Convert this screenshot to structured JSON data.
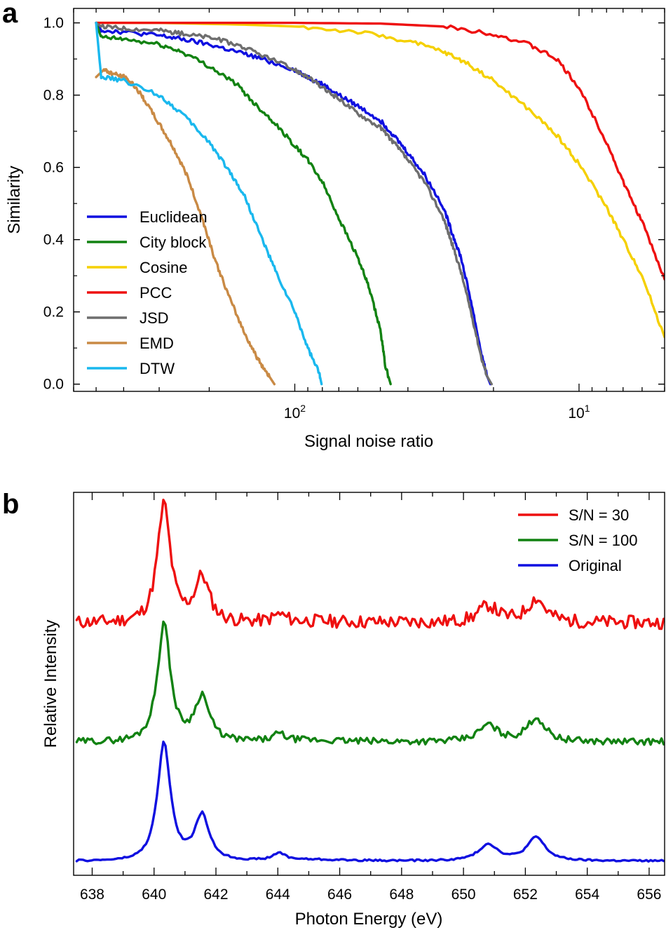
{
  "figure": {
    "panel_a_label": "a",
    "panel_b_label": "b"
  },
  "chart_data": [
    {
      "type": "line",
      "panel": "a",
      "title": "",
      "xlabel": "Signal noise ratio",
      "ylabel": "Similarity",
      "xscale": "log",
      "x_reversed": true,
      "xlim": [
        600,
        5
      ],
      "ylim": [
        -0.02,
        1.04
      ],
      "xticks": [
        {
          "value": 100,
          "base": "10",
          "exp": "2"
        },
        {
          "value": 10,
          "base": "10",
          "exp": "1"
        }
      ],
      "yticks": [
        {
          "value": 0.0,
          "label": "0.0"
        },
        {
          "value": 0.2,
          "label": "0.2"
        },
        {
          "value": 0.4,
          "label": "0.4"
        },
        {
          "value": 0.6,
          "label": "0.6"
        },
        {
          "value": 0.8,
          "label": "0.8"
        },
        {
          "value": 1.0,
          "label": "1.0"
        }
      ],
      "legend_position": "bottom-left",
      "series": [
        {
          "name": "Euclidean",
          "color": "#1010e0",
          "x": [
            500,
            480,
            400,
            300,
            250,
            200,
            160,
            130,
            100,
            90,
            80,
            70,
            60,
            50,
            45,
            40,
            35,
            30,
            28,
            26,
            24,
            22,
            21,
            20.5
          ],
          "y": [
            1.0,
            0.98,
            0.975,
            0.965,
            0.955,
            0.94,
            0.92,
            0.9,
            0.87,
            0.85,
            0.83,
            0.8,
            0.77,
            0.73,
            0.69,
            0.64,
            0.58,
            0.49,
            0.42,
            0.35,
            0.23,
            0.08,
            0.02,
            0.0
          ]
        },
        {
          "name": "City block",
          "color": "#128212",
          "x": [
            500,
            480,
            400,
            300,
            250,
            200,
            160,
            140,
            120,
            100,
            90,
            80,
            70,
            60,
            55,
            50,
            48,
            46
          ],
          "y": [
            1.0,
            0.96,
            0.955,
            0.94,
            0.92,
            0.88,
            0.83,
            0.78,
            0.73,
            0.66,
            0.62,
            0.56,
            0.46,
            0.35,
            0.27,
            0.15,
            0.05,
            0.0
          ]
        },
        {
          "name": "Cosine",
          "color": "#f5d000",
          "x": [
            500,
            300,
            150,
            100,
            60,
            40,
            30,
            25,
            20,
            15,
            12,
            10,
            8,
            7,
            6,
            5
          ],
          "y": [
            1.0,
            1.0,
            0.995,
            0.99,
            0.975,
            0.95,
            0.92,
            0.89,
            0.84,
            0.76,
            0.69,
            0.61,
            0.49,
            0.4,
            0.3,
            0.13
          ]
        },
        {
          "name": "PCC",
          "color": "#ee1010",
          "x": [
            500,
            300,
            100,
            50,
            30,
            20,
            15,
            12,
            10,
            8,
            7,
            6,
            5
          ],
          "y": [
            1.0,
            1.0,
            1.0,
            0.998,
            0.99,
            0.97,
            0.94,
            0.9,
            0.82,
            0.67,
            0.56,
            0.45,
            0.29
          ]
        },
        {
          "name": "JSD",
          "color": "#6e6e6e",
          "x": [
            500,
            480,
            400,
            300,
            250,
            200,
            160,
            130,
            100,
            90,
            80,
            70,
            60,
            50,
            45,
            40,
            35,
            30,
            28,
            26,
            24,
            22,
            21,
            20.3
          ],
          "y": [
            1.0,
            0.99,
            0.985,
            0.98,
            0.97,
            0.96,
            0.94,
            0.91,
            0.87,
            0.85,
            0.82,
            0.79,
            0.75,
            0.71,
            0.67,
            0.62,
            0.56,
            0.46,
            0.39,
            0.31,
            0.2,
            0.07,
            0.02,
            0.0
          ]
        },
        {
          "name": "EMD",
          "color": "#c98a45",
          "x": [
            500,
            470,
            440,
            400,
            370,
            340,
            300,
            270,
            240,
            210,
            190,
            170,
            150,
            135,
            125,
            118
          ],
          "y": [
            0.85,
            0.87,
            0.86,
            0.85,
            0.83,
            0.79,
            0.72,
            0.66,
            0.58,
            0.45,
            0.34,
            0.24,
            0.14,
            0.07,
            0.03,
            0.0
          ]
        },
        {
          "name": "DTW",
          "color": "#1ab8ee",
          "x": [
            500,
            480,
            400,
            300,
            250,
            200,
            170,
            150,
            130,
            115,
            100,
            90,
            82,
            80.5
          ],
          "y": [
            1.0,
            0.85,
            0.84,
            0.8,
            0.75,
            0.67,
            0.59,
            0.52,
            0.4,
            0.3,
            0.2,
            0.1,
            0.03,
            0.0
          ]
        }
      ]
    },
    {
      "type": "line",
      "panel": "b",
      "title": "",
      "xlabel": "Photon Energy (eV)",
      "ylabel": "Relative Intensity",
      "xlim": [
        637.4,
        656.5
      ],
      "ylim": [
        -0.2,
        5.1
      ],
      "grid": false,
      "xticks": [
        {
          "value": 638,
          "label": "638"
        },
        {
          "value": 640,
          "label": "640"
        },
        {
          "value": 642,
          "label": "642"
        },
        {
          "value": 644,
          "label": "644"
        },
        {
          "value": 646,
          "label": "646"
        },
        {
          "value": 648,
          "label": "648"
        },
        {
          "value": 650,
          "label": "650"
        },
        {
          "value": 652,
          "label": "652"
        },
        {
          "value": 654,
          "label": "654"
        },
        {
          "value": 656,
          "label": "656"
        }
      ],
      "legend_position": "top-right",
      "peaks": [
        [
          640.32,
          0.3,
          1.65
        ],
        [
          641.55,
          0.34,
          0.63
        ],
        [
          644.05,
          0.28,
          0.1
        ],
        [
          645.0,
          1.6,
          0.02
        ],
        [
          650.8,
          0.45,
          0.23
        ],
        [
          652.35,
          0.42,
          0.33
        ]
      ],
      "series": [
        {
          "name": "S/N = 30",
          "color": "#ee1010",
          "offset": 3.3,
          "noise": 0.09,
          "seed": 11
        },
        {
          "name": "S/N = 100",
          "color": "#128212",
          "offset": 1.65,
          "noise": 0.045,
          "seed": 29
        },
        {
          "name": "Original",
          "color": "#1010e0",
          "offset": 0.0,
          "noise": 0.012,
          "seed": 47
        }
      ]
    }
  ]
}
